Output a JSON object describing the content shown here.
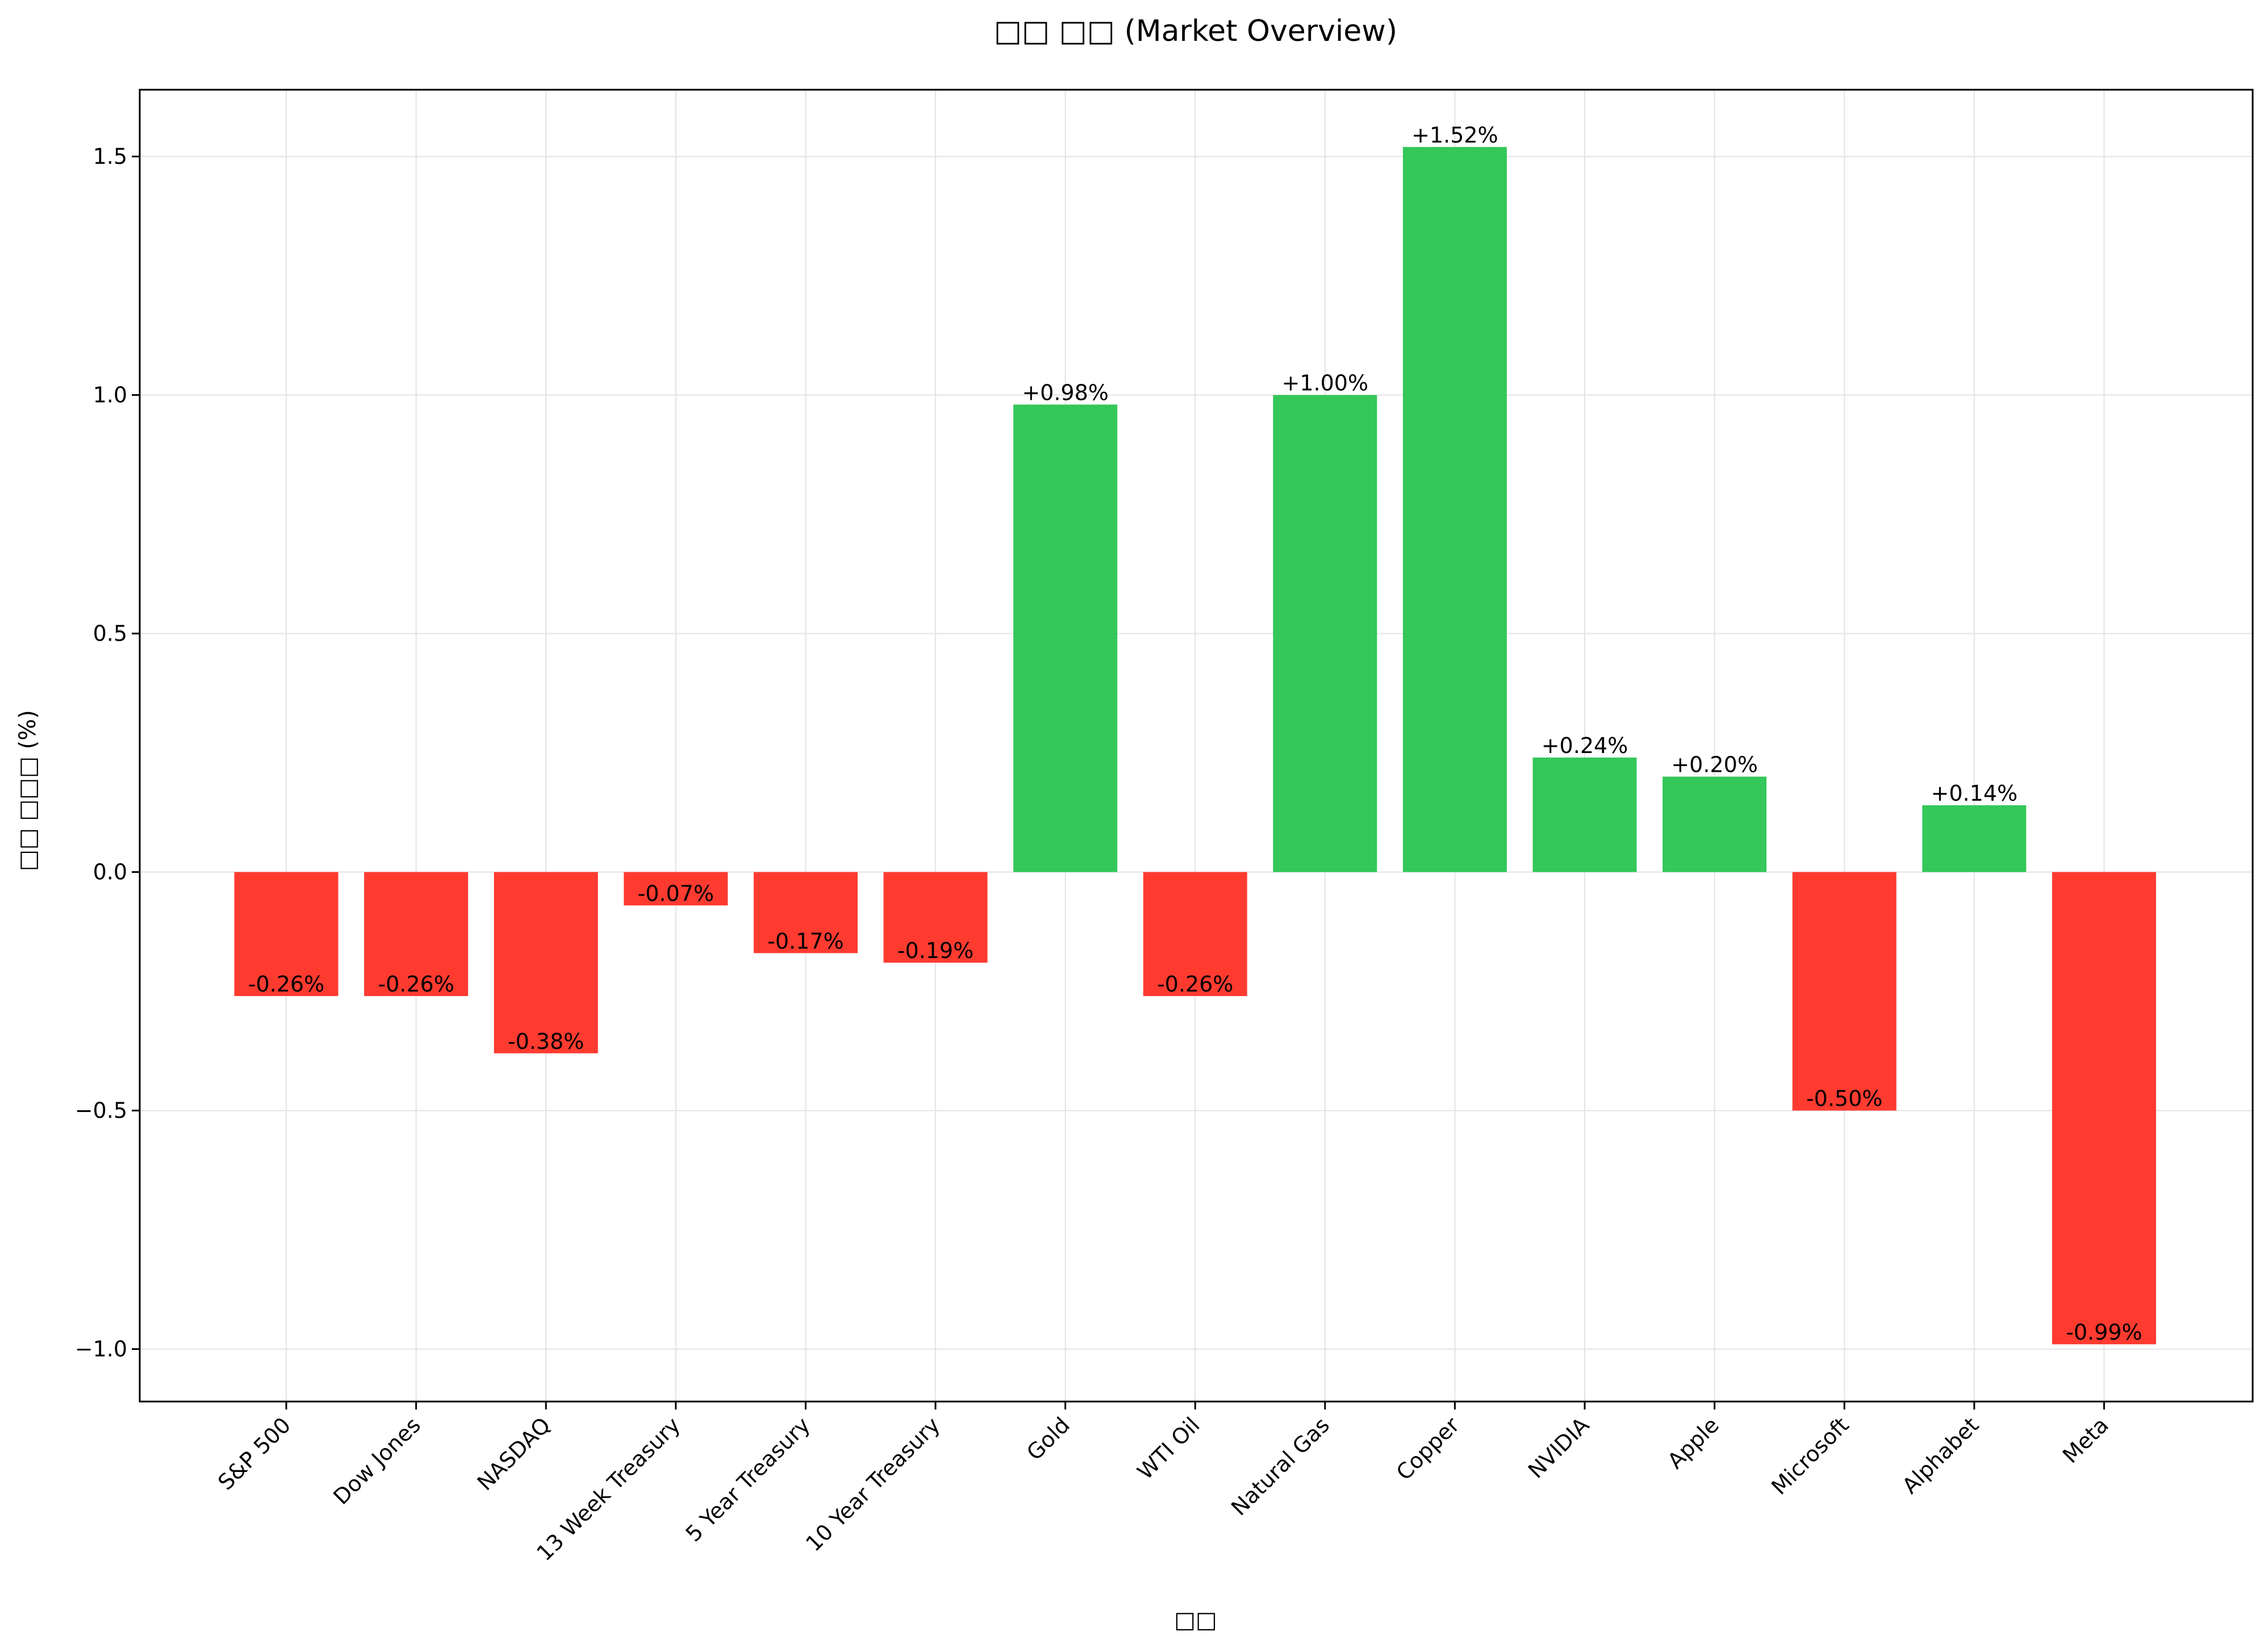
{
  "chart_data": {
    "type": "bar",
    "title": "□□ □□ (Market Overview)",
    "xlabel": "□□",
    "ylabel": "□□ □□□ (%)",
    "categories": [
      "S&P 500",
      "Dow Jones",
      "NASDAQ",
      "13 Week Treasury",
      "5 Year Treasury",
      "10 Year Treasury",
      "Gold",
      "WTI Oil",
      "Natural Gas",
      "Copper",
      "NVIDIA",
      "Apple",
      "Microsoft",
      "Alphabet",
      "Meta"
    ],
    "values": [
      -0.26,
      -0.26,
      -0.38,
      -0.07,
      -0.17,
      -0.19,
      0.98,
      -0.26,
      1.0,
      1.52,
      0.24,
      0.2,
      -0.5,
      0.14,
      -0.99
    ],
    "value_labels": [
      "-0.26%",
      "-0.26%",
      "-0.38%",
      "-0.07%",
      "-0.17%",
      "-0.19%",
      "+0.98%",
      "-0.26%",
      "+1.00%",
      "+1.52%",
      "+0.24%",
      "+0.20%",
      "-0.50%",
      "+0.14%",
      "-0.99%"
    ],
    "ylim": [
      -1.11,
      1.64
    ],
    "yticks": [
      -1.0,
      -0.5,
      0.0,
      0.5,
      1.0,
      1.5
    ],
    "ytick_labels": [
      "−1.0",
      "−0.5",
      "0.0",
      "0.5",
      "1.0",
      "1.5"
    ],
    "grid": true,
    "colors": {
      "positive": "#34c759",
      "negative": "#ff3b30",
      "grid": "#e3e3e3",
      "axis": "#000000"
    }
  }
}
